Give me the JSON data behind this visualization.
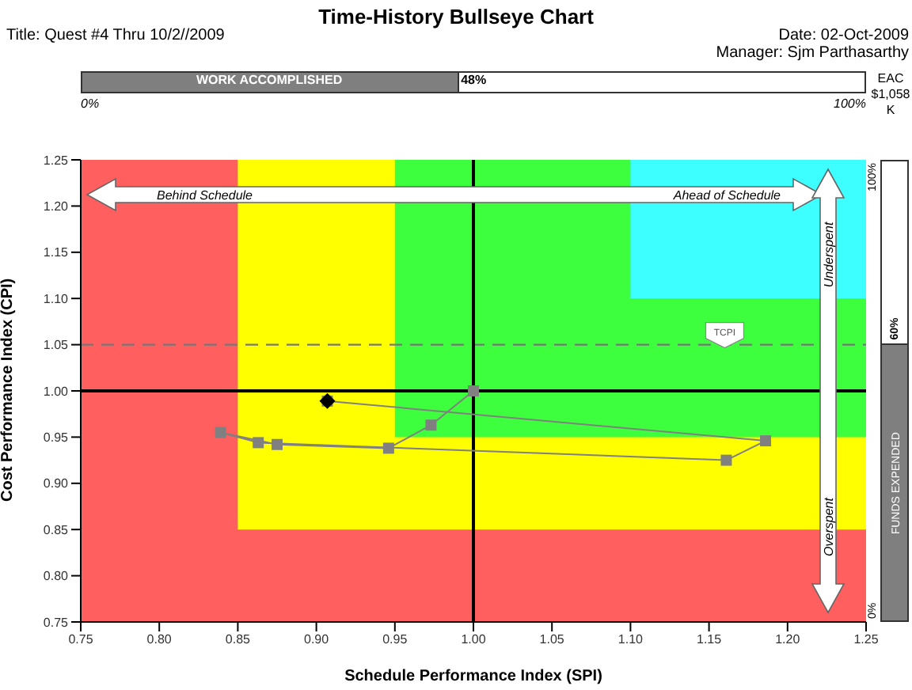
{
  "chart_data": {
    "type": "scatter",
    "title": "Time-History Bullseye Chart",
    "xlabel": "Schedule Performance Index (SPI)",
    "ylabel": "Cost Performance Index (CPI)",
    "annotations": [
      "Title: Quest #4 Thru 10/2//2009",
      "Date: 02-Oct-2009",
      "Manager: Sjm Parthasarthy",
      "WORK ACCOMPLISHED",
      "48%",
      "0%",
      "100%",
      "EAC $1,058 K",
      "FUNDS EXPENDED",
      "60%",
      "0%",
      "100%",
      "Behind Schedule",
      "Ahead of Schedule",
      "Underspent",
      "Overspent"
    ],
    "xlim": [
      0.75,
      1.25
    ],
    "ylim": [
      0.75,
      1.25
    ],
    "xticks": [
      0.75,
      {
        "value": 0.8,
        "label": "0.80"
      },
      0.85,
      {
        "value": 0.9,
        "label": "0.90"
      },
      0.95,
      {
        "value": 1,
        "label": "1.00"
      },
      1.05,
      {
        "value": 1.1,
        "label": "1.10"
      },
      1.15,
      {
        "value": 1.2,
        "label": "1.20"
      },
      1.25
    ],
    "yticks": [
      0.75,
      {
        "value": 0.8,
        "label": "0.80"
      },
      0.85,
      {
        "value": 0.9,
        "label": "0.90"
      },
      0.95,
      {
        "value": 1,
        "label": "1.00"
      },
      1.05,
      {
        "value": 1.1,
        "label": "1.10"
      },
      1.15,
      {
        "value": 1.2,
        "label": "1.20"
      },
      1.25
    ],
    "bands": [
      {
        "axis": "x",
        "from": 0.75,
        "to": 1.25,
        "color": "#ff5f5f"
      },
      {
        "axis": "x",
        "from": 0.85,
        "to": 1.25,
        "color": "#ffff00"
      },
      {
        "axis": "x",
        "from": 0.95,
        "to": 1.25,
        "color": "#3dff3d"
      },
      {
        "axis": "x",
        "from": 1.1,
        "to": 1.25,
        "color": "#3dffff"
      }
    ],
    "ref_lines": [
      {
        "axis": "y",
        "value": 1.05,
        "label": "TCPI",
        "color": "#777777",
        "line_style": "dashed"
      },
      {
        "axis": "y",
        "value": 1,
        "color": "#000000",
        "line_style": "solid"
      },
      {
        "axis": "x",
        "value": 1,
        "color": "#000000",
        "line_style": "solid"
      }
    ],
    "series": [
      {
        "type": "line",
        "color": "#808080",
        "marker": "square",
        "x": [
          1.0,
          0.973,
          0.946,
          0.875,
          0.839,
          0.863,
          1.161,
          1.186,
          0.907
        ],
        "values": [
          1.0,
          0.963,
          0.938,
          0.942,
          0.955,
          0.944,
          0.925,
          0.946,
          0.989
        ]
      },
      {
        "color": "#000000",
        "marker": "diamond",
        "x": [
          0.907
        ],
        "values": [
          0.989
        ]
      }
    ],
    "grid": false,
    "legend": false
  }
}
